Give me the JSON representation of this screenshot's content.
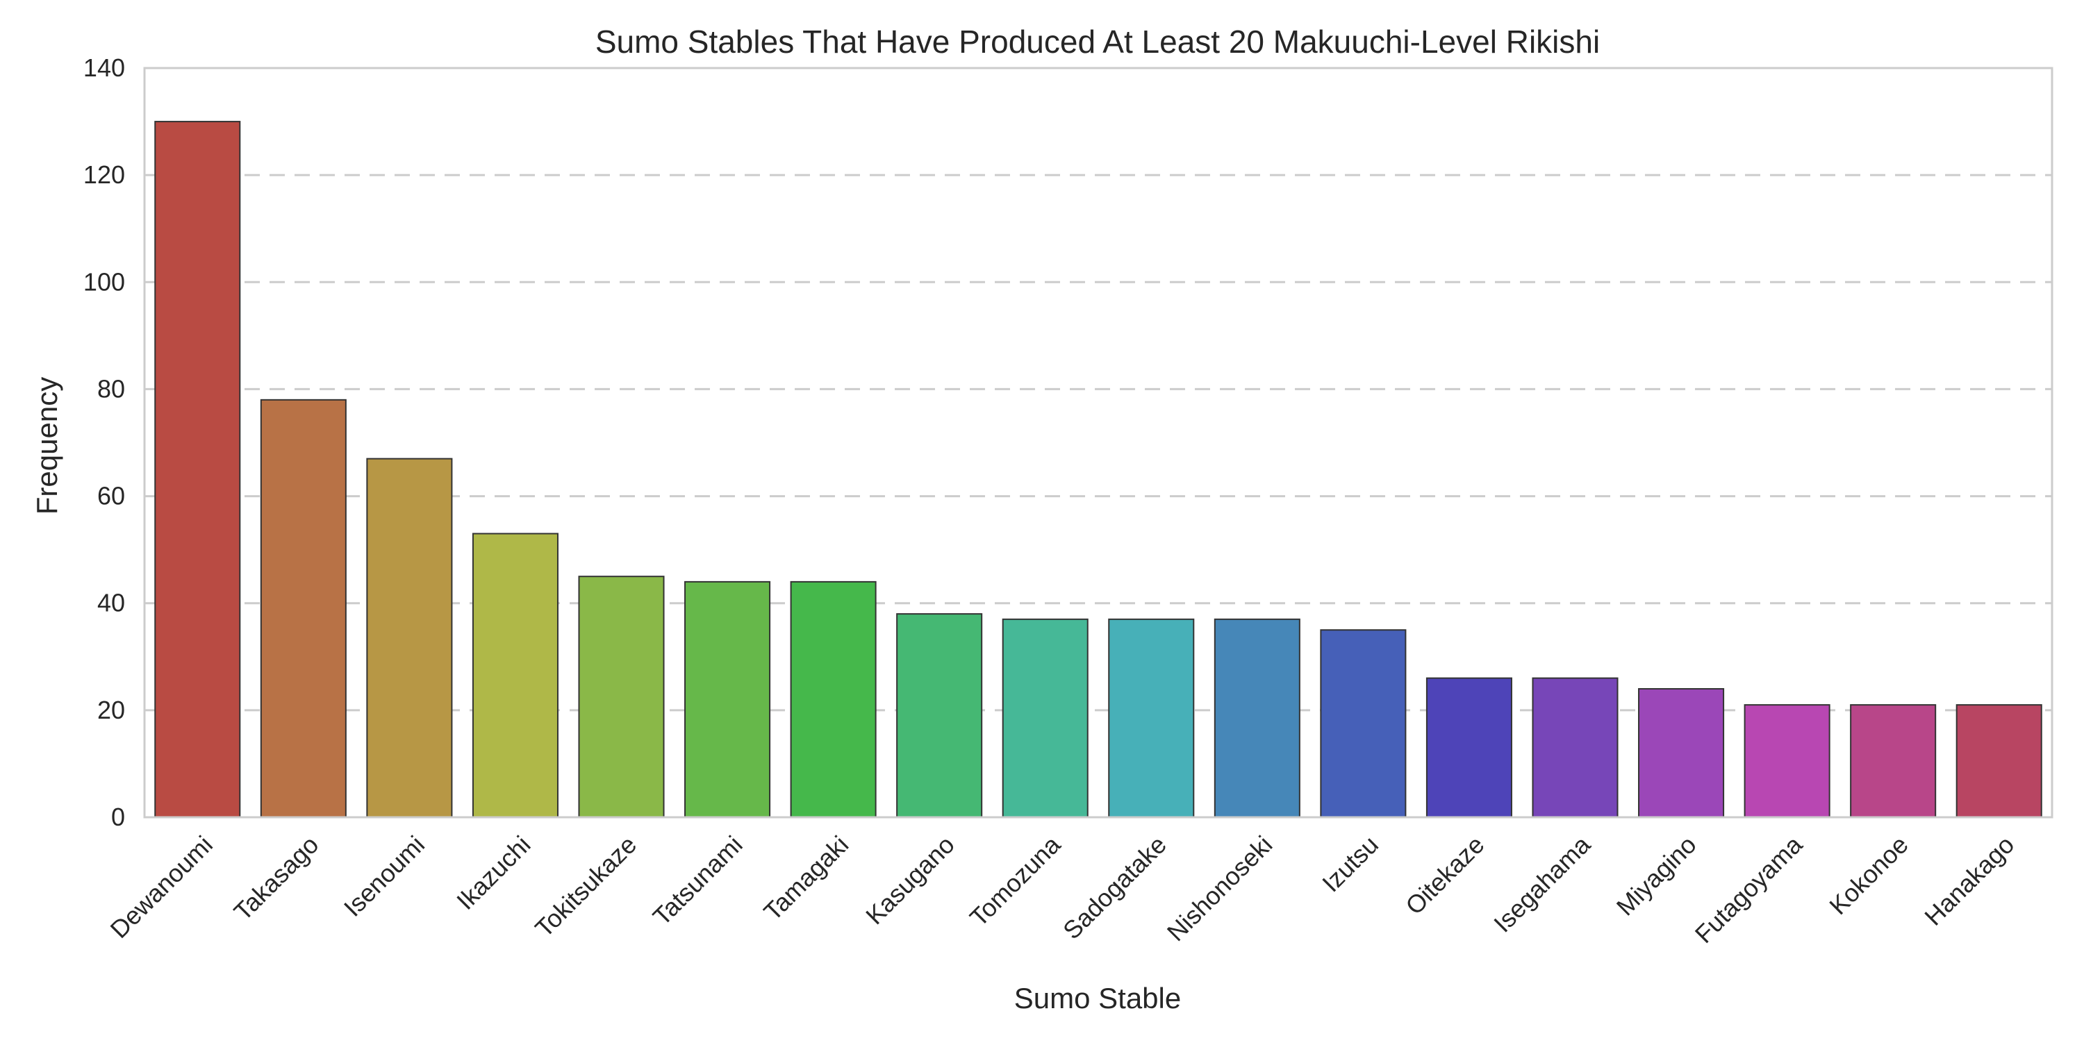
{
  "chart_data": {
    "type": "bar",
    "title": "Sumo Stables That Have Produced At Least 20 Makuuchi-Level Rikishi",
    "xlabel": "Sumo Stable",
    "ylabel": "Frequency",
    "categories": [
      "Dewanoumi",
      "Takasago",
      "Isenoumi",
      "Ikazuchi",
      "Tokitsukaze",
      "Tatsunami",
      "Tamagaki",
      "Kasugano",
      "Tomozuna",
      "Sadogatake",
      "Nishonoseki",
      "Izutsu",
      "Oitekaze",
      "Isegahama",
      "Miyagino",
      "Futagoyama",
      "Kokonoe",
      "Hanakago"
    ],
    "values": [
      130,
      78,
      67,
      53,
      45,
      44,
      44,
      38,
      37,
      37,
      37,
      35,
      26,
      26,
      24,
      21,
      21,
      21
    ],
    "colors": [
      "#b94b43",
      "#b87246",
      "#b79745",
      "#afb848",
      "#8ab848",
      "#66b84a",
      "#45b84b",
      "#45b873",
      "#46b897",
      "#47b0b8",
      "#4687b8",
      "#4660b8",
      "#4e44b8",
      "#7746b8",
      "#9b47b8",
      "#b847b2",
      "#b84689",
      "#b84562"
    ],
    "ylim": [
      0,
      140
    ],
    "yticks": [
      0,
      20,
      40,
      60,
      80,
      100,
      120,
      140
    ],
    "grid": "horizontal dashed",
    "legend": "none"
  }
}
